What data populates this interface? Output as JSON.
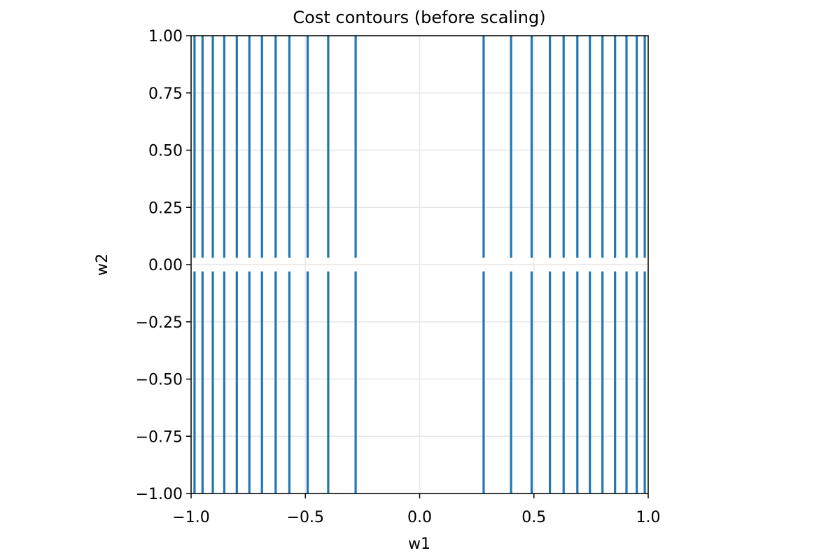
{
  "chart_data": {
    "type": "contour",
    "title": "Cost contours (before scaling)",
    "xlabel": "w1",
    "ylabel": "w2",
    "xlim": [
      -1.0,
      1.0
    ],
    "ylim": [
      -1.0,
      1.0
    ],
    "xticks": [
      -1.0,
      -0.5,
      0.0,
      0.5,
      1.0
    ],
    "xtick_labels": [
      "−1.0",
      "−0.5",
      "0.0",
      "0.5",
      "1.0"
    ],
    "yticks": [
      1.0,
      0.75,
      0.5,
      0.25,
      0.0,
      -0.25,
      -0.5,
      -0.75,
      -1.0
    ],
    "ytick_labels": [
      "1.00",
      "0.75",
      "0.50",
      "0.25",
      "0.00",
      "−0.25",
      "−0.50",
      "−0.75",
      "−1.00"
    ],
    "grid": true,
    "line_color": "#1f77b4",
    "gap_half_width_w2": 0.03,
    "contour_lines_w1": [
      -0.985,
      -0.95,
      -0.905,
      -0.855,
      -0.8,
      -0.745,
      -0.69,
      -0.63,
      -0.57,
      -0.49,
      -0.4,
      -0.28,
      0.28,
      0.4,
      0.49,
      0.57,
      0.63,
      0.69,
      0.745,
      0.8,
      0.855,
      0.905,
      0.95,
      0.985
    ]
  }
}
